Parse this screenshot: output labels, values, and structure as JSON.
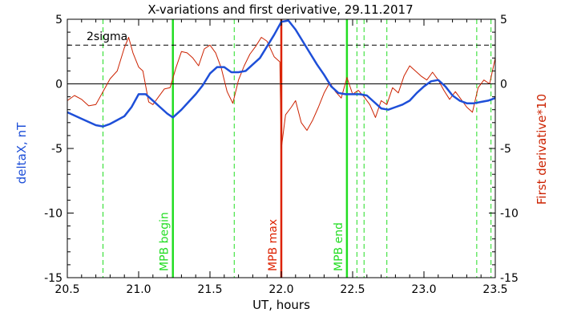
{
  "chart_data": {
    "type": "line",
    "title": "X-variations and first derivative, 29.11.2017",
    "xlabel": "UT, hours",
    "ylabel_left": "deltaX, nT",
    "ylabel_right": "First derivative*10",
    "xlim": [
      20.5,
      23.5
    ],
    "ylim": [
      -15,
      5
    ],
    "x_ticks": [
      "20.5",
      "21.0",
      "21.5",
      "22.0",
      "22.5",
      "23.0",
      "23.5"
    ],
    "y_ticks": [
      "5",
      "0",
      "-5",
      "-10",
      "-15"
    ],
    "colors": {
      "deltaX": "#1e4fd8",
      "derivative": "#cc2200",
      "green": "#22dd22",
      "red": "#dd2200"
    },
    "zero_line": 0,
    "sigma_line": {
      "label": "2sigma",
      "value": 3.0
    },
    "green_dashed_lines": [
      20.75,
      21.67,
      22.53,
      22.58,
      22.74,
      23.37,
      23.47
    ],
    "markers": [
      {
        "label": "MPB begin",
        "x": 21.24,
        "color": "#22dd22"
      },
      {
        "label": "MPB max",
        "x": 22.0,
        "color": "#dd2200"
      },
      {
        "label": "MPB end",
        "x": 22.46,
        "color": "#22dd22"
      }
    ],
    "series": [
      {
        "key": "deltaX",
        "x": [
          20.5,
          20.6,
          20.7,
          20.75,
          20.8,
          20.85,
          20.9,
          20.95,
          21.0,
          21.05,
          21.1,
          21.15,
          21.2,
          21.24,
          21.3,
          21.35,
          21.4,
          21.45,
          21.5,
          21.55,
          21.6,
          21.65,
          21.7,
          21.75,
          21.8,
          21.85,
          21.9,
          21.95,
          22.0,
          22.05,
          22.1,
          22.15,
          22.2,
          22.25,
          22.3,
          22.35,
          22.4,
          22.45,
          22.5,
          22.55,
          22.6,
          22.65,
          22.7,
          22.75,
          22.8,
          22.85,
          22.9,
          22.95,
          23.0,
          23.05,
          23.1,
          23.15,
          23.2,
          23.25,
          23.3,
          23.35,
          23.4,
          23.45,
          23.5
        ],
        "y": [
          -2.2,
          -2.7,
          -3.2,
          -3.3,
          -3.1,
          -2.8,
          -2.5,
          -1.8,
          -0.8,
          -0.8,
          -1.3,
          -1.8,
          -2.3,
          -2.6,
          -2.0,
          -1.4,
          -0.8,
          -0.1,
          0.8,
          1.3,
          1.3,
          0.9,
          0.9,
          1.0,
          1.5,
          2.0,
          2.9,
          3.8,
          4.8,
          4.9,
          4.2,
          3.3,
          2.4,
          1.5,
          0.7,
          -0.2,
          -0.7,
          -0.8,
          -0.8,
          -0.8,
          -0.9,
          -1.4,
          -1.9,
          -2.0,
          -1.8,
          -1.6,
          -1.3,
          -0.7,
          -0.2,
          0.2,
          0.3,
          -0.2,
          -0.9,
          -1.3,
          -1.5,
          -1.5,
          -1.4,
          -1.3,
          -1.1
        ]
      },
      {
        "key": "derivative",
        "x": [
          20.5,
          20.55,
          20.6,
          20.65,
          20.7,
          20.75,
          20.8,
          20.85,
          20.9,
          20.93,
          20.96,
          21.0,
          21.03,
          21.07,
          21.1,
          21.14,
          21.18,
          21.22,
          21.26,
          21.3,
          21.34,
          21.38,
          21.42,
          21.46,
          21.5,
          21.54,
          21.58,
          21.62,
          21.66,
          21.7,
          21.74,
          21.78,
          21.82,
          21.86,
          21.9,
          21.95,
          21.99,
          22.0,
          22.03,
          22.07,
          22.1,
          22.14,
          22.18,
          22.22,
          22.26,
          22.3,
          22.34,
          22.38,
          22.42,
          22.46,
          22.5,
          22.54,
          22.58,
          22.62,
          22.66,
          22.7,
          22.74,
          22.78,
          22.82,
          22.86,
          22.9,
          22.94,
          22.98,
          23.02,
          23.06,
          23.1,
          23.14,
          23.18,
          23.22,
          23.26,
          23.3,
          23.34,
          23.38,
          23.42,
          23.46,
          23.5
        ],
        "y": [
          -1.3,
          -0.9,
          -1.2,
          -1.7,
          -1.6,
          -0.6,
          0.4,
          1.0,
          2.8,
          3.6,
          2.4,
          1.3,
          1.0,
          -1.4,
          -1.6,
          -1.0,
          -0.4,
          -0.3,
          1.2,
          2.5,
          2.4,
          2.0,
          1.4,
          2.7,
          3.0,
          2.4,
          1.2,
          -0.6,
          -1.5,
          0.3,
          1.4,
          2.3,
          2.9,
          3.6,
          3.3,
          2.1,
          1.7,
          -5.0,
          -2.4,
          -1.8,
          -1.3,
          -3.0,
          -3.6,
          -2.8,
          -1.8,
          -0.7,
          0.1,
          -0.6,
          -1.1,
          0.5,
          -0.8,
          -0.5,
          -1.0,
          -1.6,
          -2.6,
          -1.3,
          -1.6,
          -0.3,
          -0.7,
          0.6,
          1.4,
          1.0,
          0.6,
          0.3,
          0.9,
          0.3,
          -0.5,
          -1.2,
          -0.6,
          -1.2,
          -1.8,
          -2.2,
          -0.3,
          0.3,
          0.0,
          2.0
        ]
      }
    ]
  }
}
